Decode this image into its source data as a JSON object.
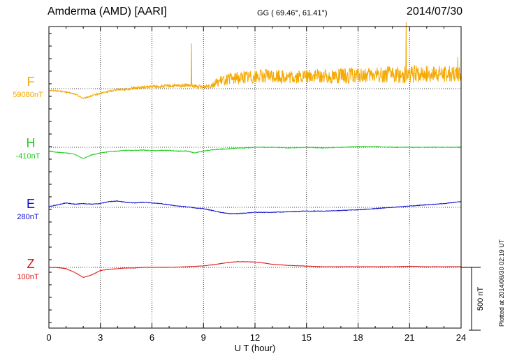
{
  "header": {
    "station": "Amderma (AMD)  [AARI]",
    "coords": "GG ( 69.46°,  61.41°)",
    "date": "2014/07/30"
  },
  "footnote": "Plotted at 2014/08/30 02:19 UT",
  "chart_data": {
    "type": "line",
    "xlabel": "U T (hour)",
    "xlim": [
      0,
      24
    ],
    "xticks": [
      0,
      3,
      6,
      9,
      12,
      15,
      18,
      21,
      24
    ],
    "grid": "dotted vertical lines every 3 hours; dotted baseline per component",
    "scale_bar": {
      "label": "500 nT",
      "value_nT": 500
    },
    "series": [
      {
        "name": "F",
        "baseline_label": "59080nT",
        "baseline_nT": 59080,
        "color": "#f5a800",
        "x": [
          0,
          0.5,
          1,
          1.5,
          2,
          2.5,
          3,
          3.5,
          4,
          4.5,
          5,
          5.5,
          6,
          6.5,
          7,
          7.5,
          8,
          8.5,
          9,
          9.5,
          10,
          10.5,
          11,
          11.5,
          12,
          12.5,
          13,
          13.5,
          14,
          14.5,
          15,
          15.5,
          16,
          16.5,
          17,
          17.5,
          18,
          18.5,
          19,
          19.5,
          20,
          20.5,
          21,
          21.5,
          22,
          22.5,
          23,
          23.5,
          24
        ],
        "y": [
          -15,
          -20,
          -30,
          -45,
          -80,
          -60,
          -40,
          -25,
          -10,
          -10,
          0,
          5,
          10,
          10,
          15,
          15,
          20,
          10,
          5,
          20,
          40,
          55,
          60,
          70,
          70,
          75,
          70,
          70,
          60,
          65,
          70,
          70,
          70,
          70,
          70,
          70,
          75,
          70,
          75,
          80,
          80,
          75,
          80,
          80,
          85,
          85,
          85,
          85,
          85
        ],
        "noise_nT": [
          10,
          10,
          10,
          10,
          10,
          12,
          12,
          15,
          18,
          20,
          22,
          22,
          25,
          25,
          28,
          28,
          30,
          30,
          30,
          60,
          80,
          90,
          100,
          110,
          110,
          110,
          110,
          120,
          110,
          110,
          110,
          120,
          110,
          120,
          120,
          130,
          120,
          120,
          130,
          130,
          130,
          130,
          140,
          140,
          130,
          130,
          130,
          130,
          130
        ],
        "spikes": [
          {
            "x": 8.3,
            "y": 360
          },
          {
            "x": 20.8,
            "y": 530
          },
          {
            "x": 23.8,
            "y": 250
          }
        ]
      },
      {
        "name": "H",
        "baseline_label": "-410nT",
        "baseline_nT": -410,
        "color": "#22cc22",
        "x": [
          0,
          0.5,
          1,
          1.5,
          2,
          2.5,
          3,
          3.5,
          4,
          4.5,
          5,
          5.5,
          6,
          6.5,
          7,
          7.5,
          8,
          8.5,
          9,
          9.5,
          10,
          10.5,
          11,
          11.5,
          12,
          13,
          14,
          15,
          16,
          17,
          18,
          19,
          20,
          21,
          22,
          23,
          24
        ],
        "y": [
          -30,
          -40,
          -45,
          -55,
          -90,
          -60,
          -45,
          -35,
          -30,
          -25,
          -25,
          -22,
          -28,
          -25,
          -25,
          -30,
          -30,
          -45,
          -30,
          -20,
          -15,
          -12,
          -5,
          -5,
          0,
          0,
          -5,
          0,
          -5,
          0,
          5,
          5,
          0,
          0,
          0,
          0,
          0
        ],
        "noise_nT": [
          5,
          5,
          5,
          5,
          5,
          5,
          6,
          6,
          6,
          6,
          6,
          6,
          6,
          6,
          6,
          6,
          6,
          6,
          6,
          6,
          6,
          6,
          6,
          6,
          6,
          6,
          6,
          6,
          6,
          6,
          6,
          6,
          6,
          6,
          6,
          6,
          6
        ]
      },
      {
        "name": "E",
        "baseline_label": "280nT",
        "baseline_nT": 280,
        "color": "#1010cc",
        "x": [
          0,
          0.5,
          1,
          1.5,
          2,
          2.5,
          3,
          3.5,
          4,
          4.5,
          5,
          5.5,
          6,
          6.5,
          7,
          7.5,
          8,
          8.5,
          9,
          9.5,
          10,
          10.5,
          11,
          11.5,
          12,
          13,
          14,
          15,
          16,
          17,
          18,
          19,
          20,
          21,
          22,
          23,
          24
        ],
        "y": [
          5,
          20,
          35,
          25,
          30,
          25,
          30,
          45,
          50,
          40,
          35,
          40,
          35,
          30,
          20,
          10,
          5,
          -5,
          -10,
          -25,
          -40,
          -50,
          -50,
          -45,
          -40,
          -40,
          -35,
          -30,
          -30,
          -25,
          -20,
          -10,
          0,
          10,
          20,
          30,
          45
        ],
        "noise_nT": [
          5,
          5,
          5,
          5,
          5,
          5,
          5,
          5,
          5,
          5,
          5,
          5,
          5,
          5,
          5,
          5,
          5,
          5,
          5,
          5,
          5,
          5,
          5,
          5,
          5,
          5,
          5,
          5,
          5,
          5,
          5,
          5,
          5,
          5,
          5,
          5,
          5
        ]
      },
      {
        "name": "Z",
        "baseline_label": "100nT",
        "baseline_nT": 100,
        "color": "#dd1111",
        "x": [
          0,
          0.5,
          1,
          1.5,
          2,
          2.5,
          3,
          3.5,
          4,
          4.5,
          5,
          5.5,
          6,
          6.5,
          7,
          7.5,
          8,
          8.5,
          9,
          9.5,
          10,
          10.5,
          11,
          11.5,
          12,
          12.5,
          13,
          14,
          15,
          16,
          17,
          18,
          19,
          20,
          21,
          22,
          23,
          24
        ],
        "y": [
          0,
          -2,
          -10,
          -40,
          -80,
          -60,
          -25,
          -15,
          -10,
          -5,
          -5,
          0,
          0,
          0,
          0,
          2,
          5,
          8,
          12,
          20,
          30,
          40,
          45,
          45,
          42,
          35,
          25,
          15,
          10,
          5,
          5,
          5,
          5,
          5,
          8,
          5,
          5,
          5
        ],
        "noise_nT": [
          3,
          3,
          3,
          3,
          3,
          3,
          3,
          3,
          3,
          3,
          3,
          3,
          3,
          3,
          3,
          3,
          3,
          3,
          3,
          3,
          3,
          3,
          3,
          3,
          3,
          3,
          3,
          3,
          3,
          3,
          3,
          3,
          3,
          3,
          3,
          3,
          3,
          3
        ]
      }
    ]
  }
}
